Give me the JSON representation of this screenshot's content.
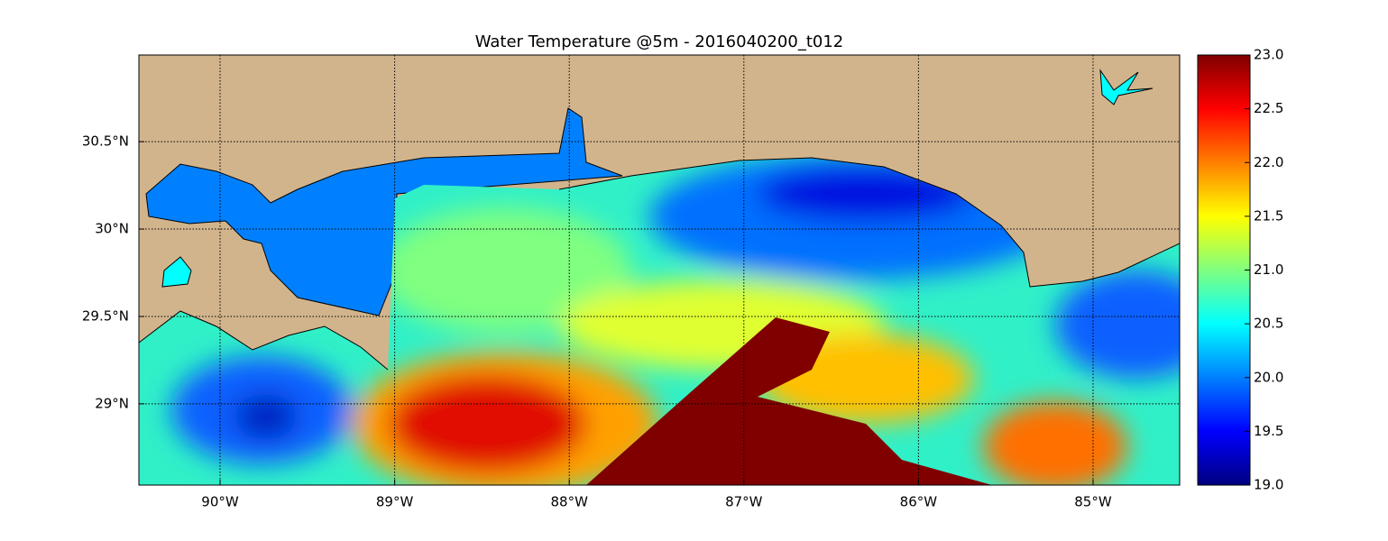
{
  "map": {
    "title": "Water Temperature @5m - 2016040200_t012",
    "xlim": [
      -90.465,
      -84.504
    ],
    "ylim": [
      28.535,
      30.996
    ],
    "xticks": [
      {
        "value": -90,
        "label": "90°W"
      },
      {
        "value": -89,
        "label": "89°W"
      },
      {
        "value": -88,
        "label": "88°W"
      },
      {
        "value": -87,
        "label": "87°W"
      },
      {
        "value": -86,
        "label": "86°W"
      },
      {
        "value": -85,
        "label": "85°W"
      }
    ],
    "yticks": [
      {
        "value": 29,
        "label": "29°N"
      },
      {
        "value": 29.5,
        "label": "29.5°N"
      },
      {
        "value": 30,
        "label": "30°N"
      },
      {
        "value": 30.5,
        "label": "30.5°N"
      }
    ],
    "grid": true,
    "colorbar": {
      "colormap": "jet",
      "lim": [
        19,
        23
      ],
      "ticks": [
        {
          "value": 19,
          "label": "19.0"
        },
        {
          "value": 19.5,
          "label": "19.5"
        },
        {
          "value": 20,
          "label": "20.0"
        },
        {
          "value": 20.5,
          "label": "20.5"
        },
        {
          "value": 21,
          "label": "21.0"
        },
        {
          "value": 21.5,
          "label": "21.5"
        },
        {
          "value": 22,
          "label": "22.0"
        },
        {
          "value": 22.5,
          "label": "22.5"
        },
        {
          "value": 23,
          "label": "23.0"
        }
      ]
    }
  }
}
